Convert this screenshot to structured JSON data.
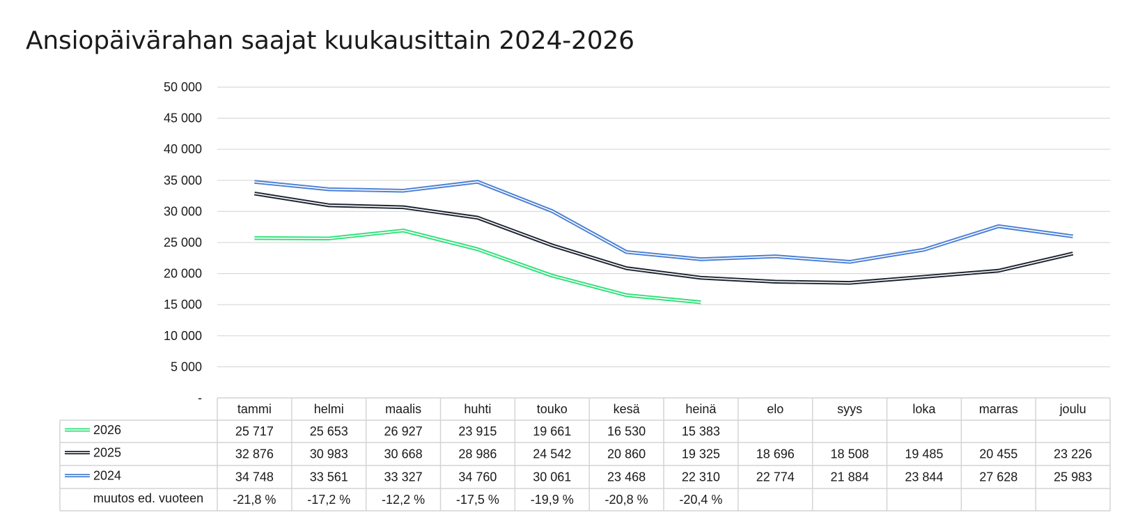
{
  "chart_data": {
    "type": "line",
    "title": "Ansiopäivärahan saajat kuukausittain 2024-2026",
    "xlabel": "",
    "ylabel": "",
    "ylim": [
      0,
      50000
    ],
    "y_ticks": [
      {
        "value": 0,
        "label": "-"
      },
      {
        "value": 5000,
        "label": "5 000"
      },
      {
        "value": 10000,
        "label": "10 000"
      },
      {
        "value": 15000,
        "label": "15 000"
      },
      {
        "value": 20000,
        "label": "20 000"
      },
      {
        "value": 25000,
        "label": "25 000"
      },
      {
        "value": 30000,
        "label": "30 000"
      },
      {
        "value": 35000,
        "label": "35 000"
      },
      {
        "value": 40000,
        "label": "40 000"
      },
      {
        "value": 45000,
        "label": "45 000"
      },
      {
        "value": 50000,
        "label": "50 000"
      }
    ],
    "grid": true,
    "legend": "data-table-left",
    "categories": [
      "tammi",
      "helmi",
      "maalis",
      "huhti",
      "touko",
      "kesä",
      "heinä",
      "elo",
      "syys",
      "loka",
      "marras",
      "joulu"
    ],
    "series": [
      {
        "name": "2026",
        "color": "#2fe07a",
        "values": [
          25717,
          25653,
          26927,
          23915,
          19661,
          16530,
          15383,
          null,
          null,
          null,
          null,
          null
        ],
        "labels": [
          "25 717",
          "25 653",
          "26 927",
          "23 915",
          "19 661",
          "16 530",
          "15 383",
          "",
          "",
          "",
          "",
          ""
        ]
      },
      {
        "name": "2025",
        "color": "#1c2430",
        "values": [
          32876,
          30983,
          30668,
          28986,
          24542,
          20860,
          19325,
          18696,
          18508,
          19485,
          20455,
          23226
        ],
        "labels": [
          "32 876",
          "30 983",
          "30 668",
          "28 986",
          "24 542",
          "20 860",
          "19 325",
          "18 696",
          "18 508",
          "19 485",
          "20 455",
          "23 226"
        ]
      },
      {
        "name": "2024",
        "color": "#4a7fd4",
        "values": [
          34748,
          33561,
          33327,
          34760,
          30061,
          23468,
          22310,
          22774,
          21884,
          23844,
          27628,
          25983
        ],
        "labels": [
          "34 748",
          "33 561",
          "33 327",
          "34 760",
          "30 061",
          "23 468",
          "22 310",
          "22 774",
          "21 884",
          "23 844",
          "27 628",
          "25 983"
        ]
      }
    ],
    "extra_rows": [
      {
        "name": "muutos ed. vuoteen",
        "values": [
          -21.8,
          -17.2,
          -12.2,
          -17.5,
          -19.9,
          -20.8,
          -20.4,
          null,
          null,
          null,
          null,
          null
        ],
        "labels": [
          "-21,8 %",
          "-17,2 %",
          "-12,2 %",
          "-17,5 %",
          "-19,9 %",
          "-20,8 %",
          "-20,4 %",
          "",
          "",
          "",
          "",
          ""
        ]
      }
    ]
  }
}
